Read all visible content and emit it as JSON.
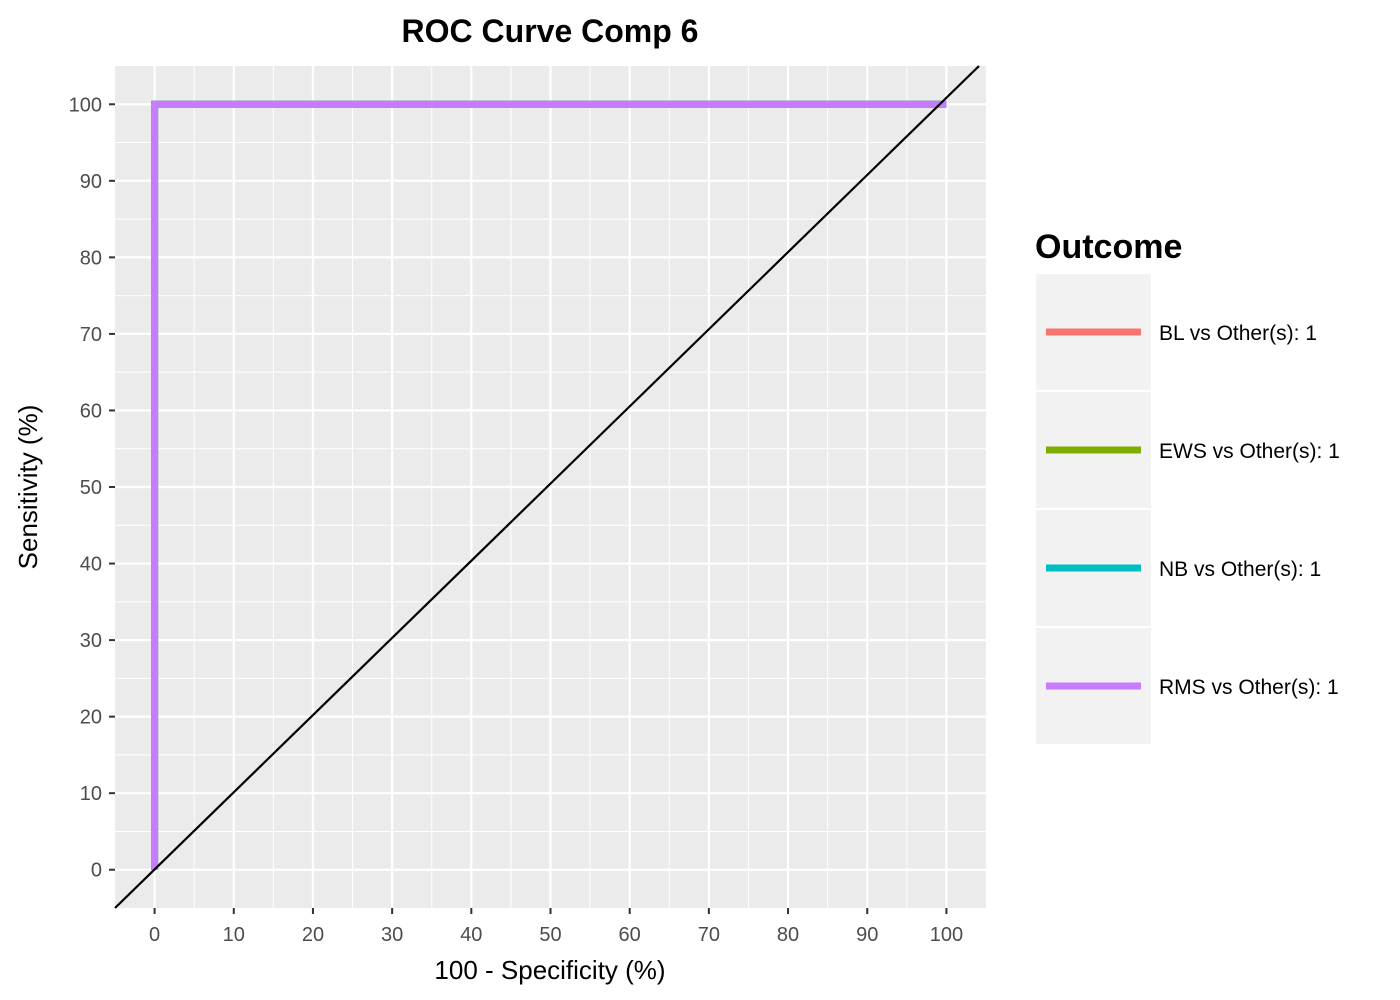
{
  "chart_data": {
    "type": "line",
    "title": "ROC Curve Comp 6",
    "xlabel": "100 - Specificity (%)",
    "ylabel": "Sensitivity (%)",
    "xlim": [
      -5,
      105
    ],
    "ylim": [
      -5,
      105
    ],
    "xticks": [
      "0",
      "10",
      "20",
      "30",
      "40",
      "50",
      "60",
      "70",
      "80",
      "90",
      "100"
    ],
    "yticks": [
      "0",
      "10",
      "20",
      "30",
      "40",
      "50",
      "60",
      "70",
      "80",
      "90",
      "100"
    ],
    "grid": true,
    "legend_position": "right",
    "legend_title": "Outcome",
    "reference_line": {
      "x": [
        -5,
        105
      ],
      "y": [
        -5,
        105
      ],
      "color": "#000000"
    },
    "series": [
      {
        "name": "BL vs Other(s): 1",
        "color": "#f8766d",
        "x": [
          0,
          0,
          100
        ],
        "y": [
          0,
          100,
          100
        ]
      },
      {
        "name": "EWS vs Other(s): 1",
        "color": "#7cae00",
        "x": [
          0,
          0,
          100
        ],
        "y": [
          0,
          100,
          100
        ]
      },
      {
        "name": "NB vs Other(s): 1",
        "color": "#00bfc4",
        "x": [
          0,
          0,
          100
        ],
        "y": [
          0,
          100,
          100
        ]
      },
      {
        "name": "RMS vs Other(s): 1",
        "color": "#c77cff",
        "x": [
          0,
          0,
          100
        ],
        "y": [
          0,
          100,
          100
        ]
      }
    ]
  }
}
